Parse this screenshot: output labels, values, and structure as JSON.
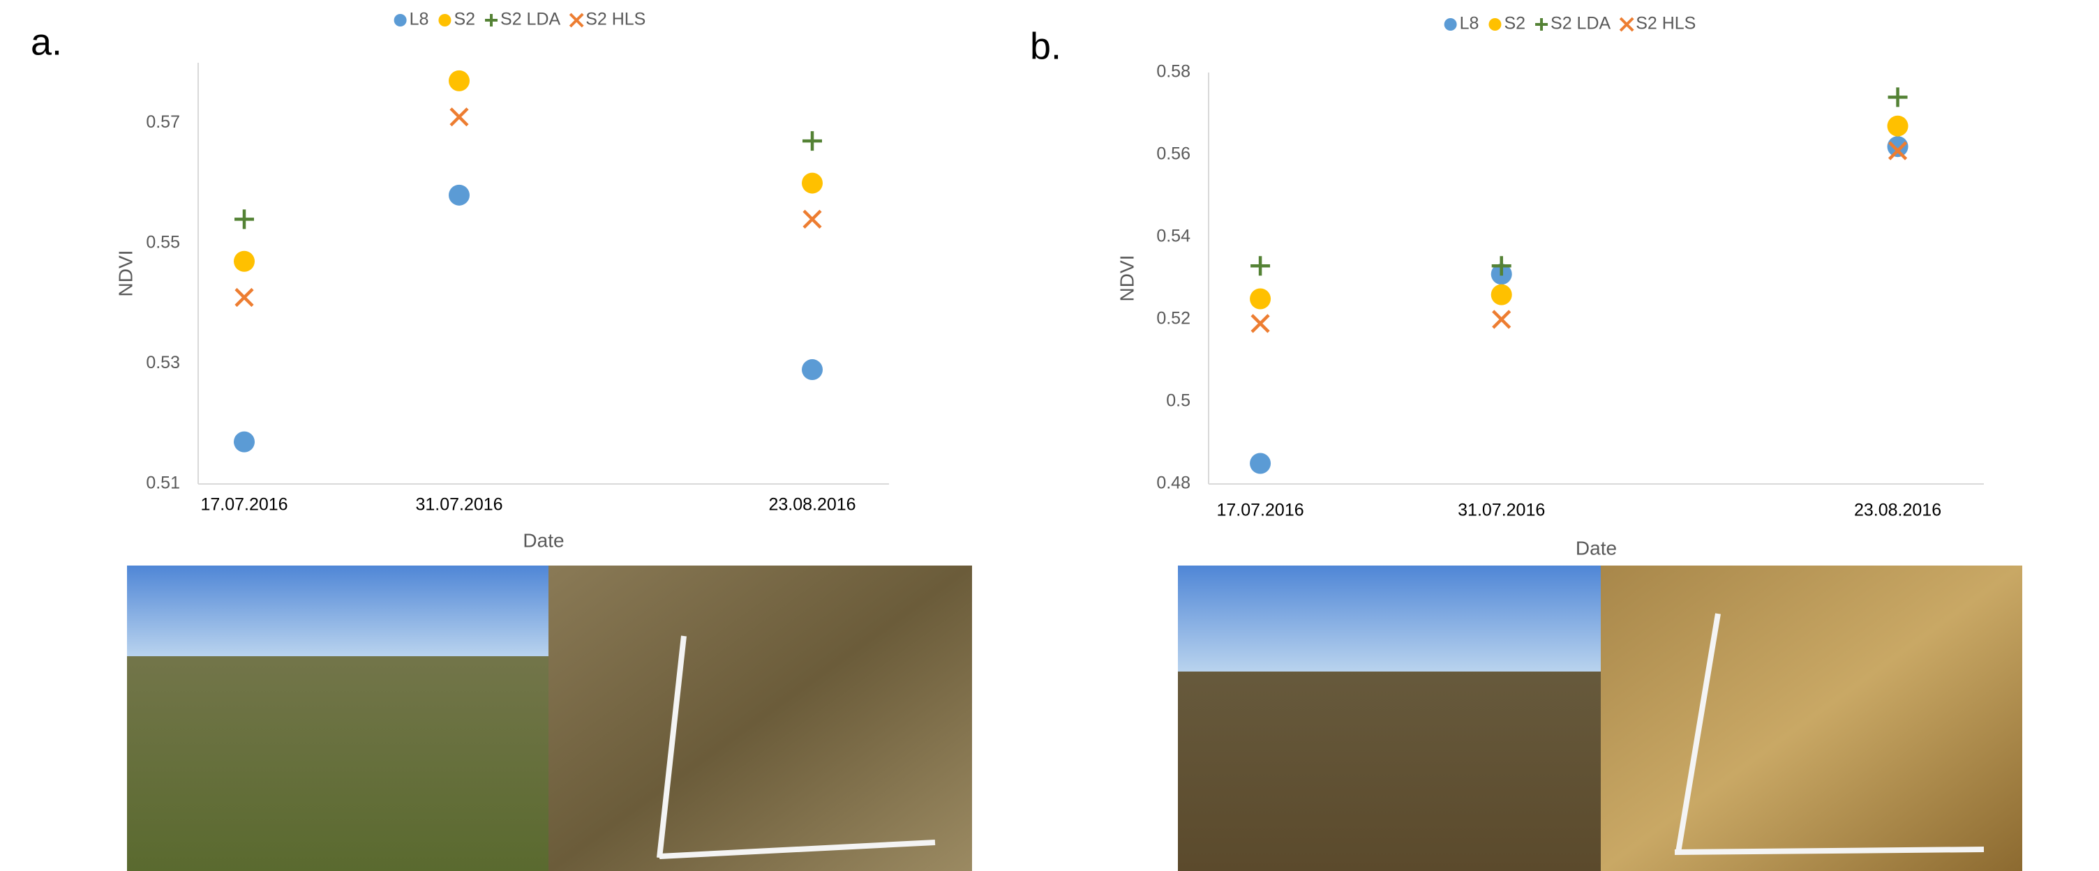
{
  "chart_data": [
    {
      "type": "scatter",
      "panel_label": "a.",
      "x_label": "Date",
      "y_label": "NDVI",
      "x": [
        "17.07.2016",
        "31.07.2016",
        "23.08.2016"
      ],
      "xlim": [
        "14.07.2016",
        "28.08.2016"
      ],
      "ylim": [
        0.51,
        0.58
      ],
      "yticks": [
        0.51,
        0.53,
        0.55,
        0.57
      ],
      "legend": "top",
      "series": [
        {
          "name": "L8",
          "color": "#5b9bd5",
          "marker": "circle",
          "values": [
            0.517,
            0.558,
            0.529
          ]
        },
        {
          "name": "S2",
          "color": "#ffc000",
          "marker": "circle",
          "values": [
            0.547,
            0.577,
            0.56
          ]
        },
        {
          "name": "S2 LDA",
          "color": "#548235",
          "marker": "plus",
          "values": [
            0.554,
            null,
            0.567
          ]
        },
        {
          "name": "S2 HLS",
          "color": "#ed7d31",
          "marker": "cross",
          "values": [
            0.541,
            0.571,
            0.554
          ]
        }
      ]
    },
    {
      "type": "scatter",
      "panel_label": "b.",
      "x_label": "Date",
      "y_label": "NDVI",
      "x": [
        "17.07.2016",
        "31.07.2016",
        "23.08.2016"
      ],
      "xlim": [
        "14.07.2016",
        "28.08.2016"
      ],
      "ylim": [
        0.48,
        0.58
      ],
      "yticks": [
        0.48,
        0.5,
        0.52,
        0.54,
        0.56,
        0.58
      ],
      "legend": "top",
      "series": [
        {
          "name": "L8",
          "color": "#5b9bd5",
          "marker": "circle",
          "values": [
            0.485,
            0.531,
            0.562
          ]
        },
        {
          "name": "S2",
          "color": "#ffc000",
          "marker": "circle",
          "values": [
            0.525,
            0.526,
            0.567
          ]
        },
        {
          "name": "S2 LDA",
          "color": "#548235",
          "marker": "plus",
          "values": [
            0.533,
            0.533,
            0.574
          ]
        },
        {
          "name": "S2 HLS",
          "color": "#ed7d31",
          "marker": "cross",
          "values": [
            0.519,
            0.52,
            0.561
          ]
        }
      ]
    }
  ]
}
